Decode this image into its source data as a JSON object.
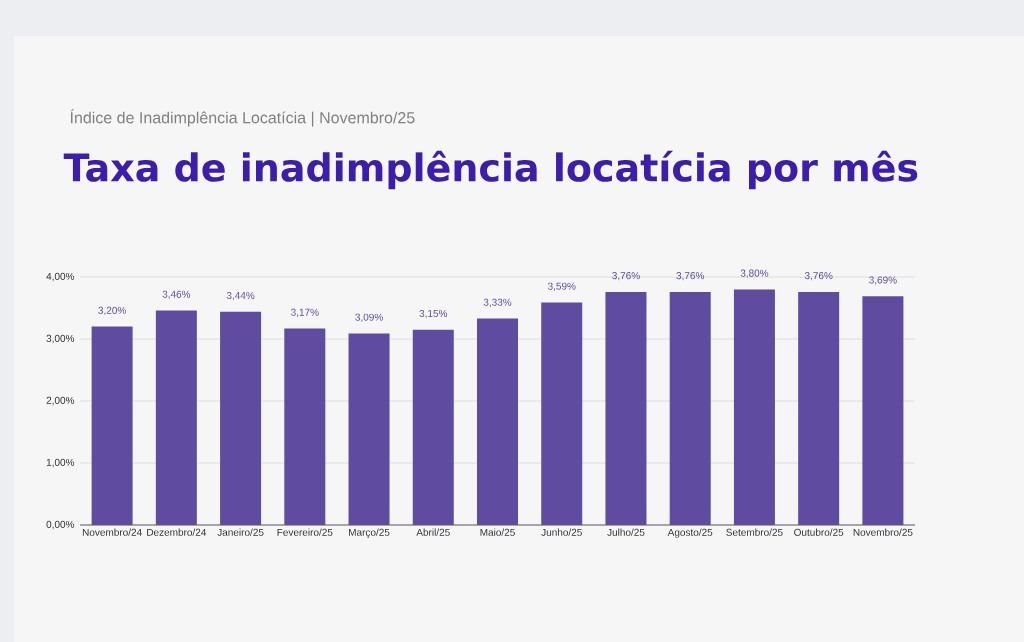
{
  "chart_data": {
    "type": "bar",
    "subtitle": "Índice de Inadimplência Locatícia | Novembro/25",
    "title": "Taxa de inadimplência locatícia por mês",
    "categories": [
      "Novembro/24",
      "Dezembro/24",
      "Janeiro/25",
      "Fevereiro/25",
      "Março/25",
      "Abril/25",
      "Maio/25",
      "Junho/25",
      "Julho/25",
      "Agosto/25",
      "Setembro/25",
      "Outubro/25",
      "Novembro/25"
    ],
    "values": [
      3.2,
      3.46,
      3.44,
      3.17,
      3.09,
      3.15,
      3.33,
      3.59,
      3.76,
      3.76,
      3.8,
      3.76,
      3.69
    ],
    "value_labels": [
      "3,20%",
      "3,46%",
      "3,44%",
      "3,17%",
      "3,09%",
      "3,15%",
      "3,33%",
      "3,59%",
      "3,76%",
      "3,76%",
      "3,80%",
      "3,76%",
      "3,69%"
    ],
    "color": "#5f4b9f",
    "ylim": [
      0,
      4
    ],
    "yticks": [
      {
        "value": 0,
        "label": "0,00%"
      },
      {
        "value": 1,
        "label": "1,00%"
      },
      {
        "value": 2,
        "label": "2,00%"
      },
      {
        "value": 3,
        "label": "3,00%"
      },
      {
        "value": 4,
        "label": "4,00%"
      }
    ],
    "grid": "y"
  }
}
